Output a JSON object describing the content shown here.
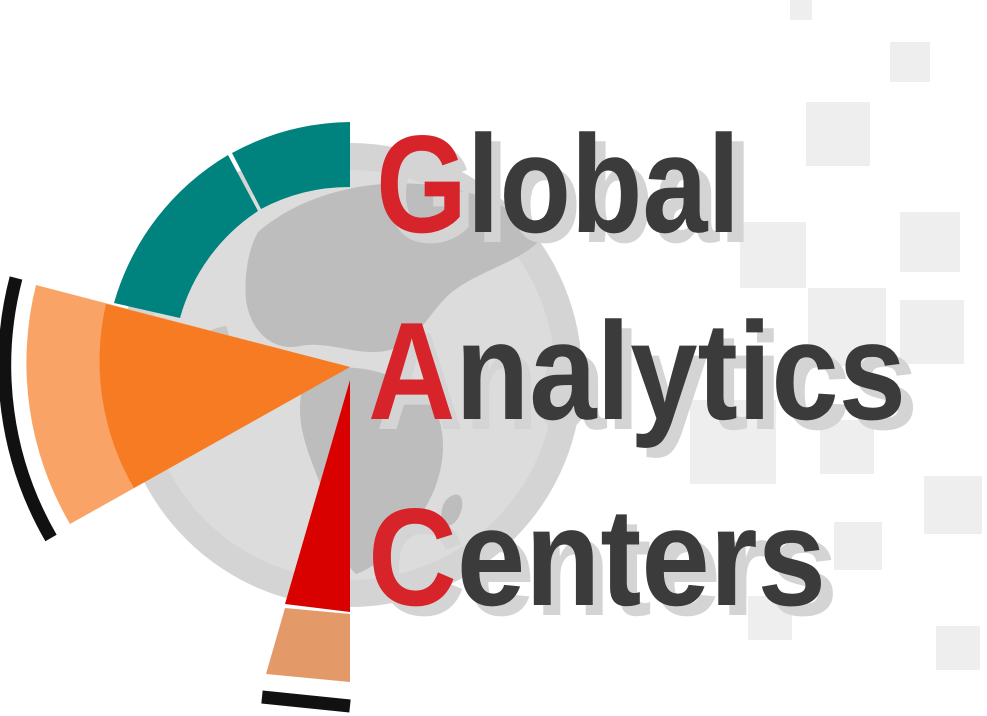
{
  "logo": {
    "lines": [
      {
        "initial": "G",
        "rest": "lobal"
      },
      {
        "initial": "A",
        "rest": "nalytics"
      },
      {
        "initial": "C",
        "rest": "enters"
      }
    ],
    "colors": {
      "initial": "#d7232a",
      "text": "#3b3b3b",
      "text_shadow": "#d4d4d4",
      "teal": "#00827e",
      "orange": "#f5791f",
      "orange_light": "#f9a466",
      "red": "#d90000",
      "tan": "#e49a68",
      "black_arc": "#111111",
      "globe": "#c8c8c8",
      "squares": "#eeeeee"
    }
  }
}
